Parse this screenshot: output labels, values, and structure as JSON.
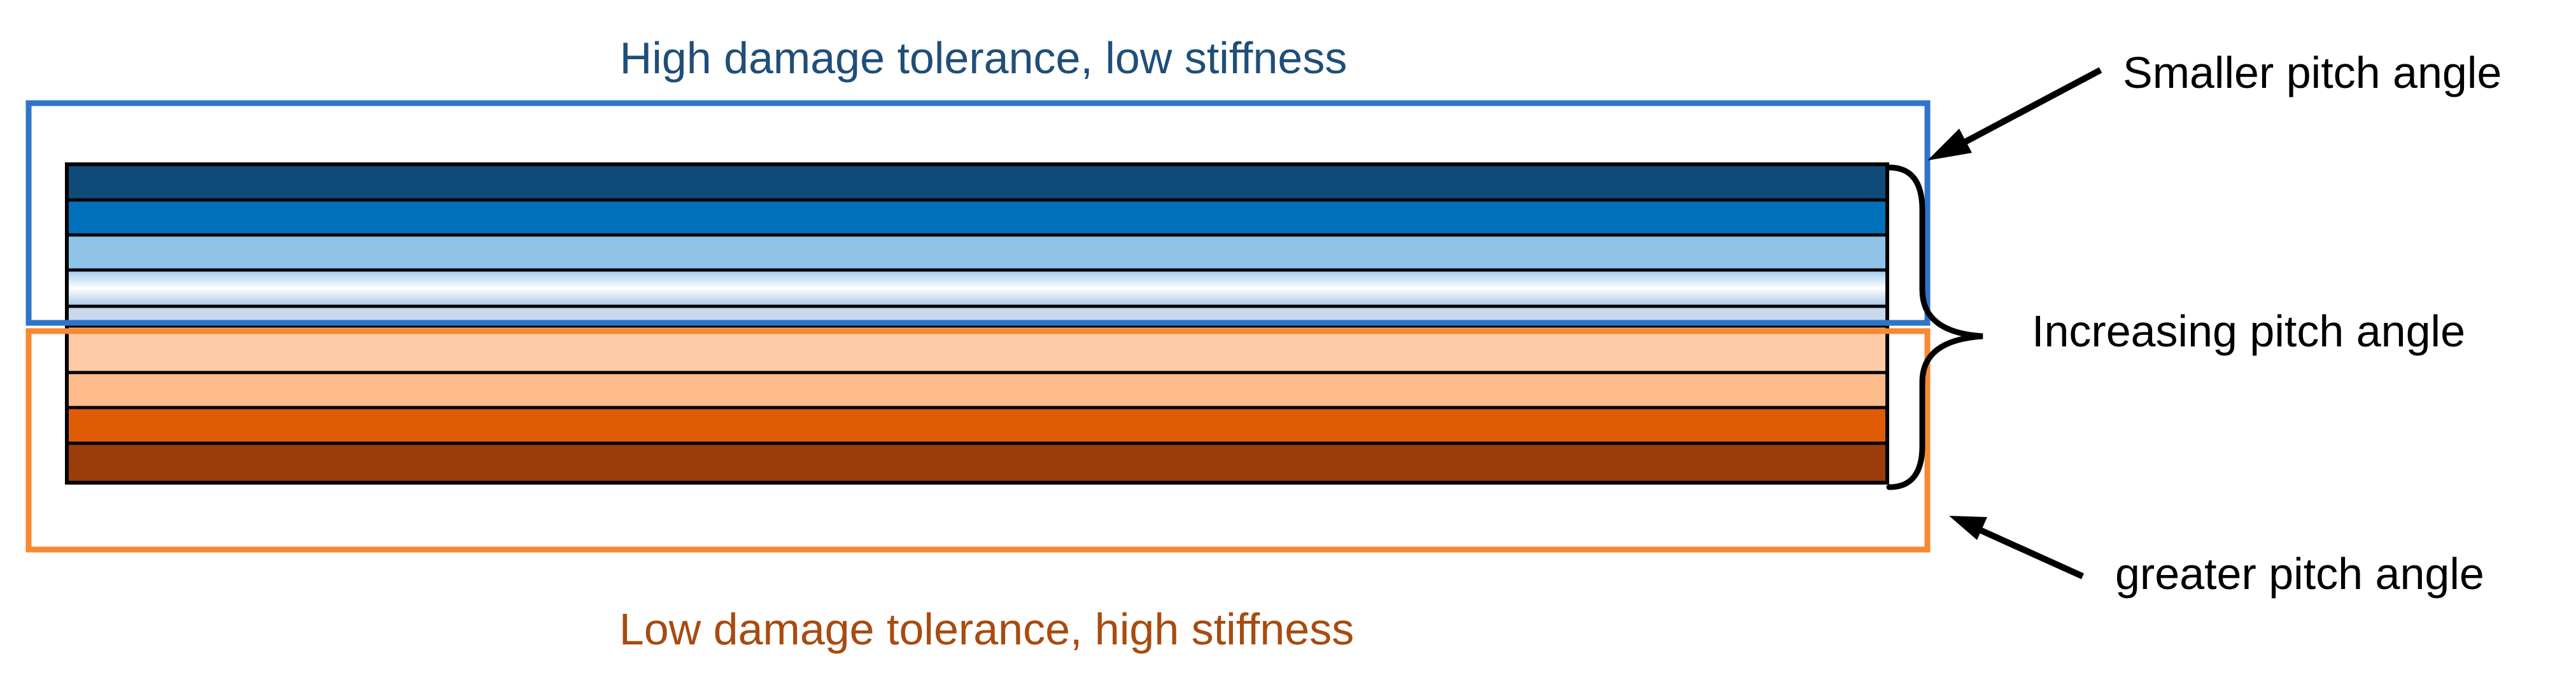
{
  "top_caption": "High damage tolerance, low stiffness",
  "bottom_caption": "Low damage tolerance, high stiffness",
  "callouts": {
    "smaller": "Smaller pitch angle",
    "increasing": "Increasing pitch angle",
    "greater": "greater pitch angle"
  },
  "colors": {
    "top_caption": "#1f4e79",
    "bottom_caption": "#a84b10",
    "top_group_frame": "#2e75c9",
    "bottom_group_frame": "#f58a32",
    "text": "#000000"
  },
  "layers": [
    {
      "fill": "#0f4a78"
    },
    {
      "fill": "#0070ba"
    },
    {
      "fill": "#8fc3e8"
    },
    {
      "fill": "gradient"
    },
    {
      "fill": "#c9d9ec"
    },
    {
      "fill": "#ffcaa6"
    },
    {
      "fill": "#fdbb8b"
    },
    {
      "fill": "#e05b05"
    },
    {
      "fill": "#9b3d0a"
    }
  ]
}
